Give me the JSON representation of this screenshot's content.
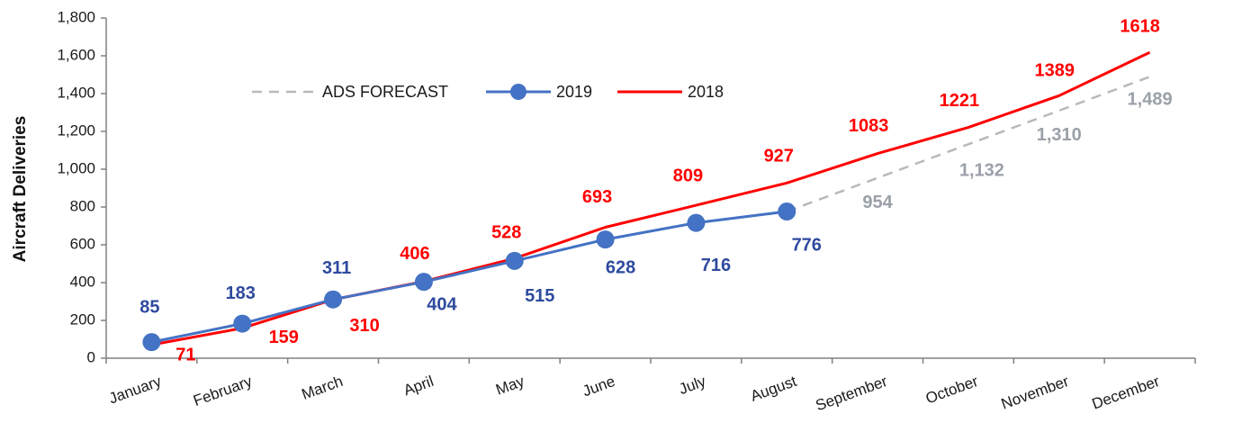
{
  "chart_data": {
    "type": "line",
    "title": "",
    "xlabel": "",
    "ylabel": "Aircraft Deliveries",
    "ylim": [
      0,
      1800
    ],
    "yticks": [
      "0",
      "200",
      "400",
      "600",
      "800",
      "1,000",
      "1,200",
      "1,400",
      "1,600",
      "1,800"
    ],
    "categories": [
      "January",
      "February",
      "March",
      "April",
      "May",
      "June",
      "July",
      "August",
      "September",
      "October",
      "November",
      "December"
    ],
    "grid": false,
    "legend_position": "top-left",
    "series": [
      {
        "name": "ADS FORECAST",
        "color": "#b7b9bd",
        "style": "dashed",
        "values": [
          null,
          null,
          null,
          null,
          null,
          null,
          null,
          776,
          954,
          1132,
          1310,
          1489
        ],
        "labels": [
          null,
          null,
          null,
          null,
          null,
          null,
          null,
          null,
          "954",
          "1,132",
          "1,310",
          "1,489"
        ]
      },
      {
        "name": "2019",
        "color": "#4472c4",
        "label_color": "#2e4a9e",
        "style": "line-markers",
        "values": [
          85,
          183,
          311,
          404,
          515,
          628,
          716,
          776,
          null,
          null,
          null,
          null
        ],
        "labels": [
          "85",
          "183",
          "311",
          "404",
          "515",
          "628",
          "716",
          "776",
          null,
          null,
          null,
          null
        ]
      },
      {
        "name": "2018",
        "color": "#ff0000",
        "style": "line",
        "values": [
          71,
          159,
          310,
          406,
          528,
          693,
          809,
          927,
          1083,
          1221,
          1389,
          1618
        ],
        "labels": [
          "71",
          "159",
          "310",
          "406",
          "528",
          "693",
          "809",
          "927",
          "1083",
          "1221",
          "1389",
          "1618"
        ]
      }
    ]
  }
}
